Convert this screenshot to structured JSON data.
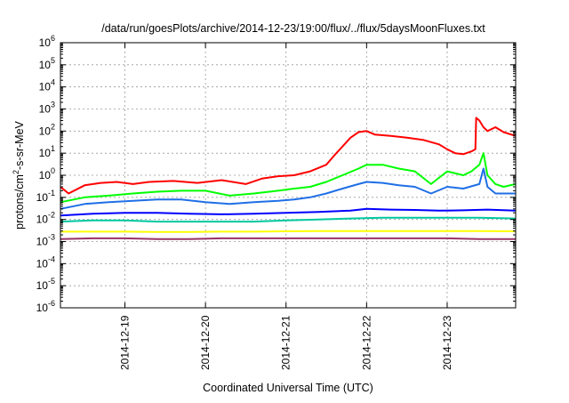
{
  "chart_data": {
    "type": "line",
    "title": "/data/run/goesPlots/archive/2014-12-23/19:00/flux/../flux/5daysMoonFluxes.txt",
    "xlabel": "Coordinated Universal Time (UTC)",
    "ylabel": {
      "parts": [
        {
          "text": "protons/cm",
          "sup": false
        },
        {
          "text": "2",
          "sup": true
        },
        {
          "text": "-s-sr-MeV",
          "sup": false
        }
      ]
    },
    "yscale": "log",
    "ylim": [
      1e-06,
      1000000.0
    ],
    "xlim": [
      -0.8,
      4.85
    ],
    "grid": true,
    "x_tick_labels": [
      {
        "x": 0,
        "label": "2014-12-19"
      },
      {
        "x": 1,
        "label": "2014-12-20"
      },
      {
        "x": 2,
        "label": "2014-12-21"
      },
      {
        "x": 3,
        "label": "2014-12-22"
      },
      {
        "x": 4,
        "label": "2014-12-23"
      }
    ],
    "y_tick_labels": [
      {
        "exp": -6,
        "base": "10",
        "sup": "-6"
      },
      {
        "exp": -5,
        "base": "10",
        "sup": "-5"
      },
      {
        "exp": -4,
        "base": "10",
        "sup": "-4"
      },
      {
        "exp": -3,
        "base": "10",
        "sup": "-3"
      },
      {
        "exp": -2,
        "base": "10",
        "sup": "-2"
      },
      {
        "exp": -1,
        "base": "10",
        "sup": "-1"
      },
      {
        "exp": 0,
        "base": "10",
        "sup": "0"
      },
      {
        "exp": 1,
        "base": "10",
        "sup": "1"
      },
      {
        "exp": 2,
        "base": "10",
        "sup": "2"
      },
      {
        "exp": 3,
        "base": "10",
        "sup": "3"
      },
      {
        "exp": 4,
        "base": "10",
        "sup": "4"
      },
      {
        "exp": 5,
        "base": "10",
        "sup": "5"
      },
      {
        "exp": 6,
        "base": "10",
        "sup": "6"
      }
    ],
    "series": [
      {
        "color": "#ff0000",
        "x": [
          -0.8,
          -0.7,
          -0.5,
          -0.3,
          -0.1,
          0.1,
          0.3,
          0.6,
          0.9,
          1.2,
          1.5,
          1.7,
          1.9,
          2.1,
          2.3,
          2.5,
          2.6,
          2.7,
          2.8,
          2.9,
          3.0,
          3.1,
          3.3,
          3.5,
          3.7,
          3.9,
          4.0,
          4.1,
          4.2,
          4.3,
          4.35,
          4.36,
          4.4,
          4.45,
          4.5,
          4.6,
          4.7,
          4.85
        ],
        "y": [
          0.3,
          0.15,
          0.35,
          0.45,
          0.5,
          0.4,
          0.5,
          0.55,
          0.45,
          0.6,
          0.4,
          0.7,
          0.9,
          1,
          1.5,
          3,
          8,
          20,
          50,
          90,
          100,
          70,
          60,
          50,
          40,
          25,
          15,
          10,
          9,
          12,
          15,
          400,
          300,
          150,
          100,
          150,
          90,
          60
        ]
      },
      {
        "color": "#00ff00",
        "x": [
          -0.8,
          -0.5,
          -0.2,
          0.1,
          0.4,
          0.7,
          1.0,
          1.3,
          1.6,
          1.9,
          2.1,
          2.3,
          2.5,
          2.7,
          2.9,
          3.0,
          3.2,
          3.4,
          3.6,
          3.8,
          4.0,
          4.2,
          4.3,
          4.4,
          4.45,
          4.5,
          4.6,
          4.7,
          4.85
        ],
        "y": [
          0.06,
          0.1,
          0.12,
          0.15,
          0.18,
          0.2,
          0.2,
          0.12,
          0.15,
          0.2,
          0.25,
          0.3,
          0.5,
          1,
          2,
          3,
          3,
          2,
          1.5,
          0.4,
          1.5,
          1,
          1.5,
          3,
          10,
          1,
          0.4,
          0.3,
          0.4
        ]
      },
      {
        "color": "#1e6fe6",
        "x": [
          -0.8,
          -0.5,
          -0.2,
          0.1,
          0.4,
          0.7,
          1.0,
          1.3,
          1.6,
          1.9,
          2.1,
          2.3,
          2.5,
          2.7,
          2.9,
          3.0,
          3.2,
          3.4,
          3.6,
          3.8,
          4.0,
          4.2,
          4.4,
          4.45,
          4.5,
          4.6,
          4.85
        ],
        "y": [
          0.03,
          0.05,
          0.06,
          0.07,
          0.08,
          0.08,
          0.06,
          0.05,
          0.06,
          0.07,
          0.08,
          0.1,
          0.15,
          0.25,
          0.4,
          0.5,
          0.45,
          0.35,
          0.3,
          0.15,
          0.3,
          0.25,
          0.4,
          2,
          0.3,
          0.15,
          0.15
        ]
      },
      {
        "color": "#0000ff",
        "x": [
          -0.8,
          -0.4,
          0,
          0.4,
          0.8,
          1.2,
          1.6,
          2.0,
          2.4,
          2.8,
          3.0,
          3.3,
          3.6,
          3.9,
          4.2,
          4.5,
          4.85
        ],
        "y": [
          0.015,
          0.018,
          0.02,
          0.02,
          0.018,
          0.017,
          0.018,
          0.02,
          0.022,
          0.025,
          0.03,
          0.028,
          0.027,
          0.025,
          0.026,
          0.028,
          0.025
        ]
      },
      {
        "color": "#00c8a0",
        "x": [
          -0.8,
          -0.4,
          0,
          0.4,
          0.8,
          1.2,
          1.6,
          2.0,
          2.4,
          2.8,
          3.2,
          3.6,
          4.0,
          4.4,
          4.85
        ],
        "y": [
          0.008,
          0.009,
          0.009,
          0.008,
          0.008,
          0.008,
          0.008,
          0.009,
          0.01,
          0.011,
          0.012,
          0.012,
          0.012,
          0.012,
          0.011
        ]
      },
      {
        "color": "#ffff00",
        "x": [
          -0.8,
          -0.4,
          0,
          0.4,
          0.8,
          1.2,
          1.6,
          2.0,
          2.4,
          2.8,
          3.2,
          3.6,
          4.0,
          4.4,
          4.85
        ],
        "y": [
          0.0028,
          0.0028,
          0.0028,
          0.0027,
          0.0027,
          0.0028,
          0.0028,
          0.0029,
          0.003,
          0.003,
          0.003,
          0.003,
          0.003,
          0.003,
          0.0029
        ]
      },
      {
        "color": "#993366",
        "x": [
          -0.8,
          -0.4,
          0,
          0.4,
          0.8,
          1.2,
          1.6,
          2.0,
          2.4,
          2.8,
          3.2,
          3.6,
          4.0,
          4.4,
          4.85
        ],
        "y": [
          0.0013,
          0.0014,
          0.0014,
          0.0013,
          0.0013,
          0.0014,
          0.0014,
          0.0014,
          0.0014,
          0.0014,
          0.0014,
          0.0014,
          0.0014,
          0.0013,
          0.0013
        ]
      }
    ]
  }
}
